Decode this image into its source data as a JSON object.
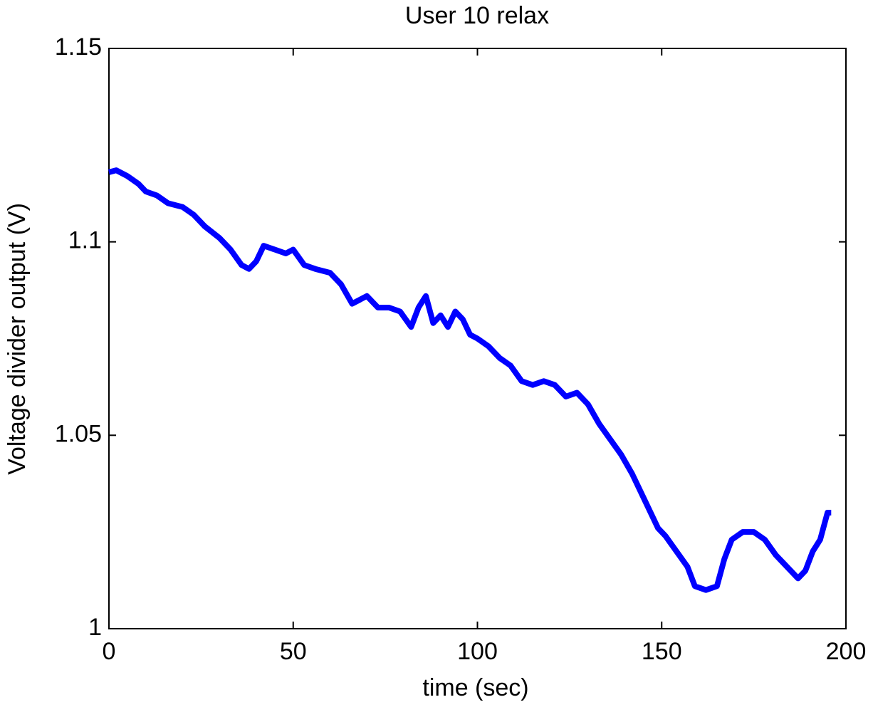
{
  "chart_data": {
    "type": "line",
    "title": "User 10 relax",
    "x_label": "time (sec)",
    "y_label": "Voltage divider output (V)",
    "xlim": [
      0,
      200
    ],
    "xticks": [
      0,
      50,
      100,
      150,
      200
    ],
    "ylim": [
      1,
      1.15
    ],
    "yticks": [
      1,
      1.05,
      1.1,
      1.15
    ],
    "x": [
      0,
      2,
      5,
      8,
      10,
      13,
      16,
      20,
      23,
      26,
      30,
      33,
      36,
      38,
      40,
      42,
      45,
      48,
      50,
      53,
      56,
      60,
      63,
      66,
      68,
      70,
      73,
      76,
      79,
      82,
      84,
      86,
      88,
      90,
      92,
      94,
      96,
      98,
      100,
      103,
      106,
      109,
      112,
      115,
      118,
      121,
      124,
      127,
      130,
      133,
      136,
      139,
      142,
      145,
      147,
      149,
      151,
      154,
      157,
      159,
      162,
      165,
      167,
      169,
      172,
      175,
      178,
      181,
      184,
      187,
      189,
      191,
      193,
      195,
      196
    ],
    "series": [
      {
        "color": "#0000ff",
        "values": [
          1.118,
          1.1185,
          1.117,
          1.115,
          1.113,
          1.112,
          1.11,
          1.109,
          1.107,
          1.104,
          1.101,
          1.098,
          1.094,
          1.093,
          1.095,
          1.099,
          1.098,
          1.097,
          1.098,
          1.094,
          1.093,
          1.092,
          1.089,
          1.084,
          1.085,
          1.086,
          1.083,
          1.083,
          1.082,
          1.078,
          1.083,
          1.086,
          1.079,
          1.081,
          1.078,
          1.082,
          1.08,
          1.076,
          1.075,
          1.073,
          1.07,
          1.068,
          1.064,
          1.063,
          1.064,
          1.063,
          1.06,
          1.061,
          1.058,
          1.053,
          1.049,
          1.045,
          1.04,
          1.034,
          1.03,
          1.026,
          1.024,
          1.02,
          1.016,
          1.011,
          1.01,
          1.011,
          1.018,
          1.023,
          1.025,
          1.025,
          1.023,
          1.019,
          1.016,
          1.013,
          1.015,
          1.02,
          1.023,
          1.03,
          1.03
        ]
      }
    ]
  }
}
